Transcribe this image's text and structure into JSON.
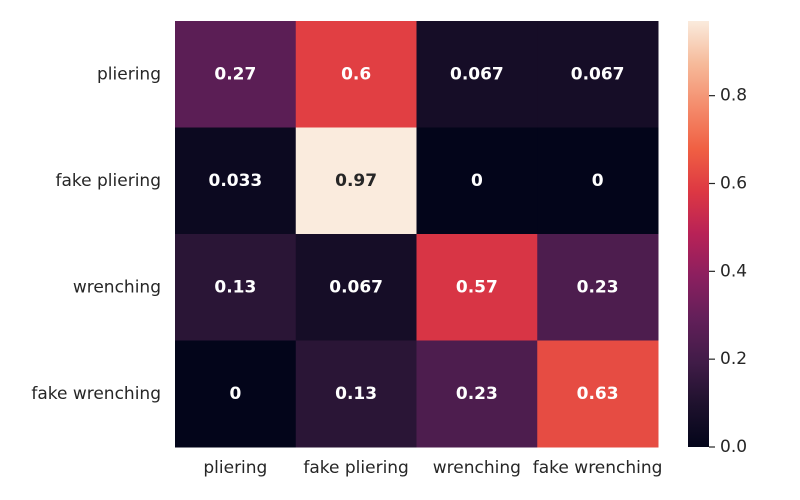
{
  "chart_data": {
    "type": "heatmap",
    "title": "",
    "xlabel": "",
    "ylabel": "",
    "row_labels": [
      "pliering",
      "fake pliering",
      "wrenching",
      "fake wrenching"
    ],
    "col_labels": [
      "pliering",
      "fake pliering",
      "wrenching",
      "fake wrenching"
    ],
    "values": [
      [
        0.27,
        0.6,
        0.067,
        0.067
      ],
      [
        0.033,
        0.97,
        0,
        0
      ],
      [
        0.13,
        0.067,
        0.57,
        0.23
      ],
      [
        0,
        0.13,
        0.23,
        0.63
      ]
    ],
    "value_labels": [
      [
        "0.27",
        "0.6",
        "0.067",
        "0.067"
      ],
      [
        "0.033",
        "0.97",
        "0",
        "0"
      ],
      [
        "0.13",
        "0.067",
        "0.57",
        "0.23"
      ],
      [
        "0",
        "0.13",
        "0.23",
        "0.63"
      ]
    ],
    "colorbar": {
      "range": [
        0,
        0.97
      ],
      "ticks": [
        0.0,
        0.2,
        0.4,
        0.6,
        0.8
      ],
      "tick_labels": [
        "0.0",
        "0.2",
        "0.4",
        "0.6",
        "0.8"
      ],
      "colormap": "rocket"
    },
    "colors": {
      "text_dark_cells": "#ffffff",
      "text_light_cells": "#262626"
    }
  }
}
